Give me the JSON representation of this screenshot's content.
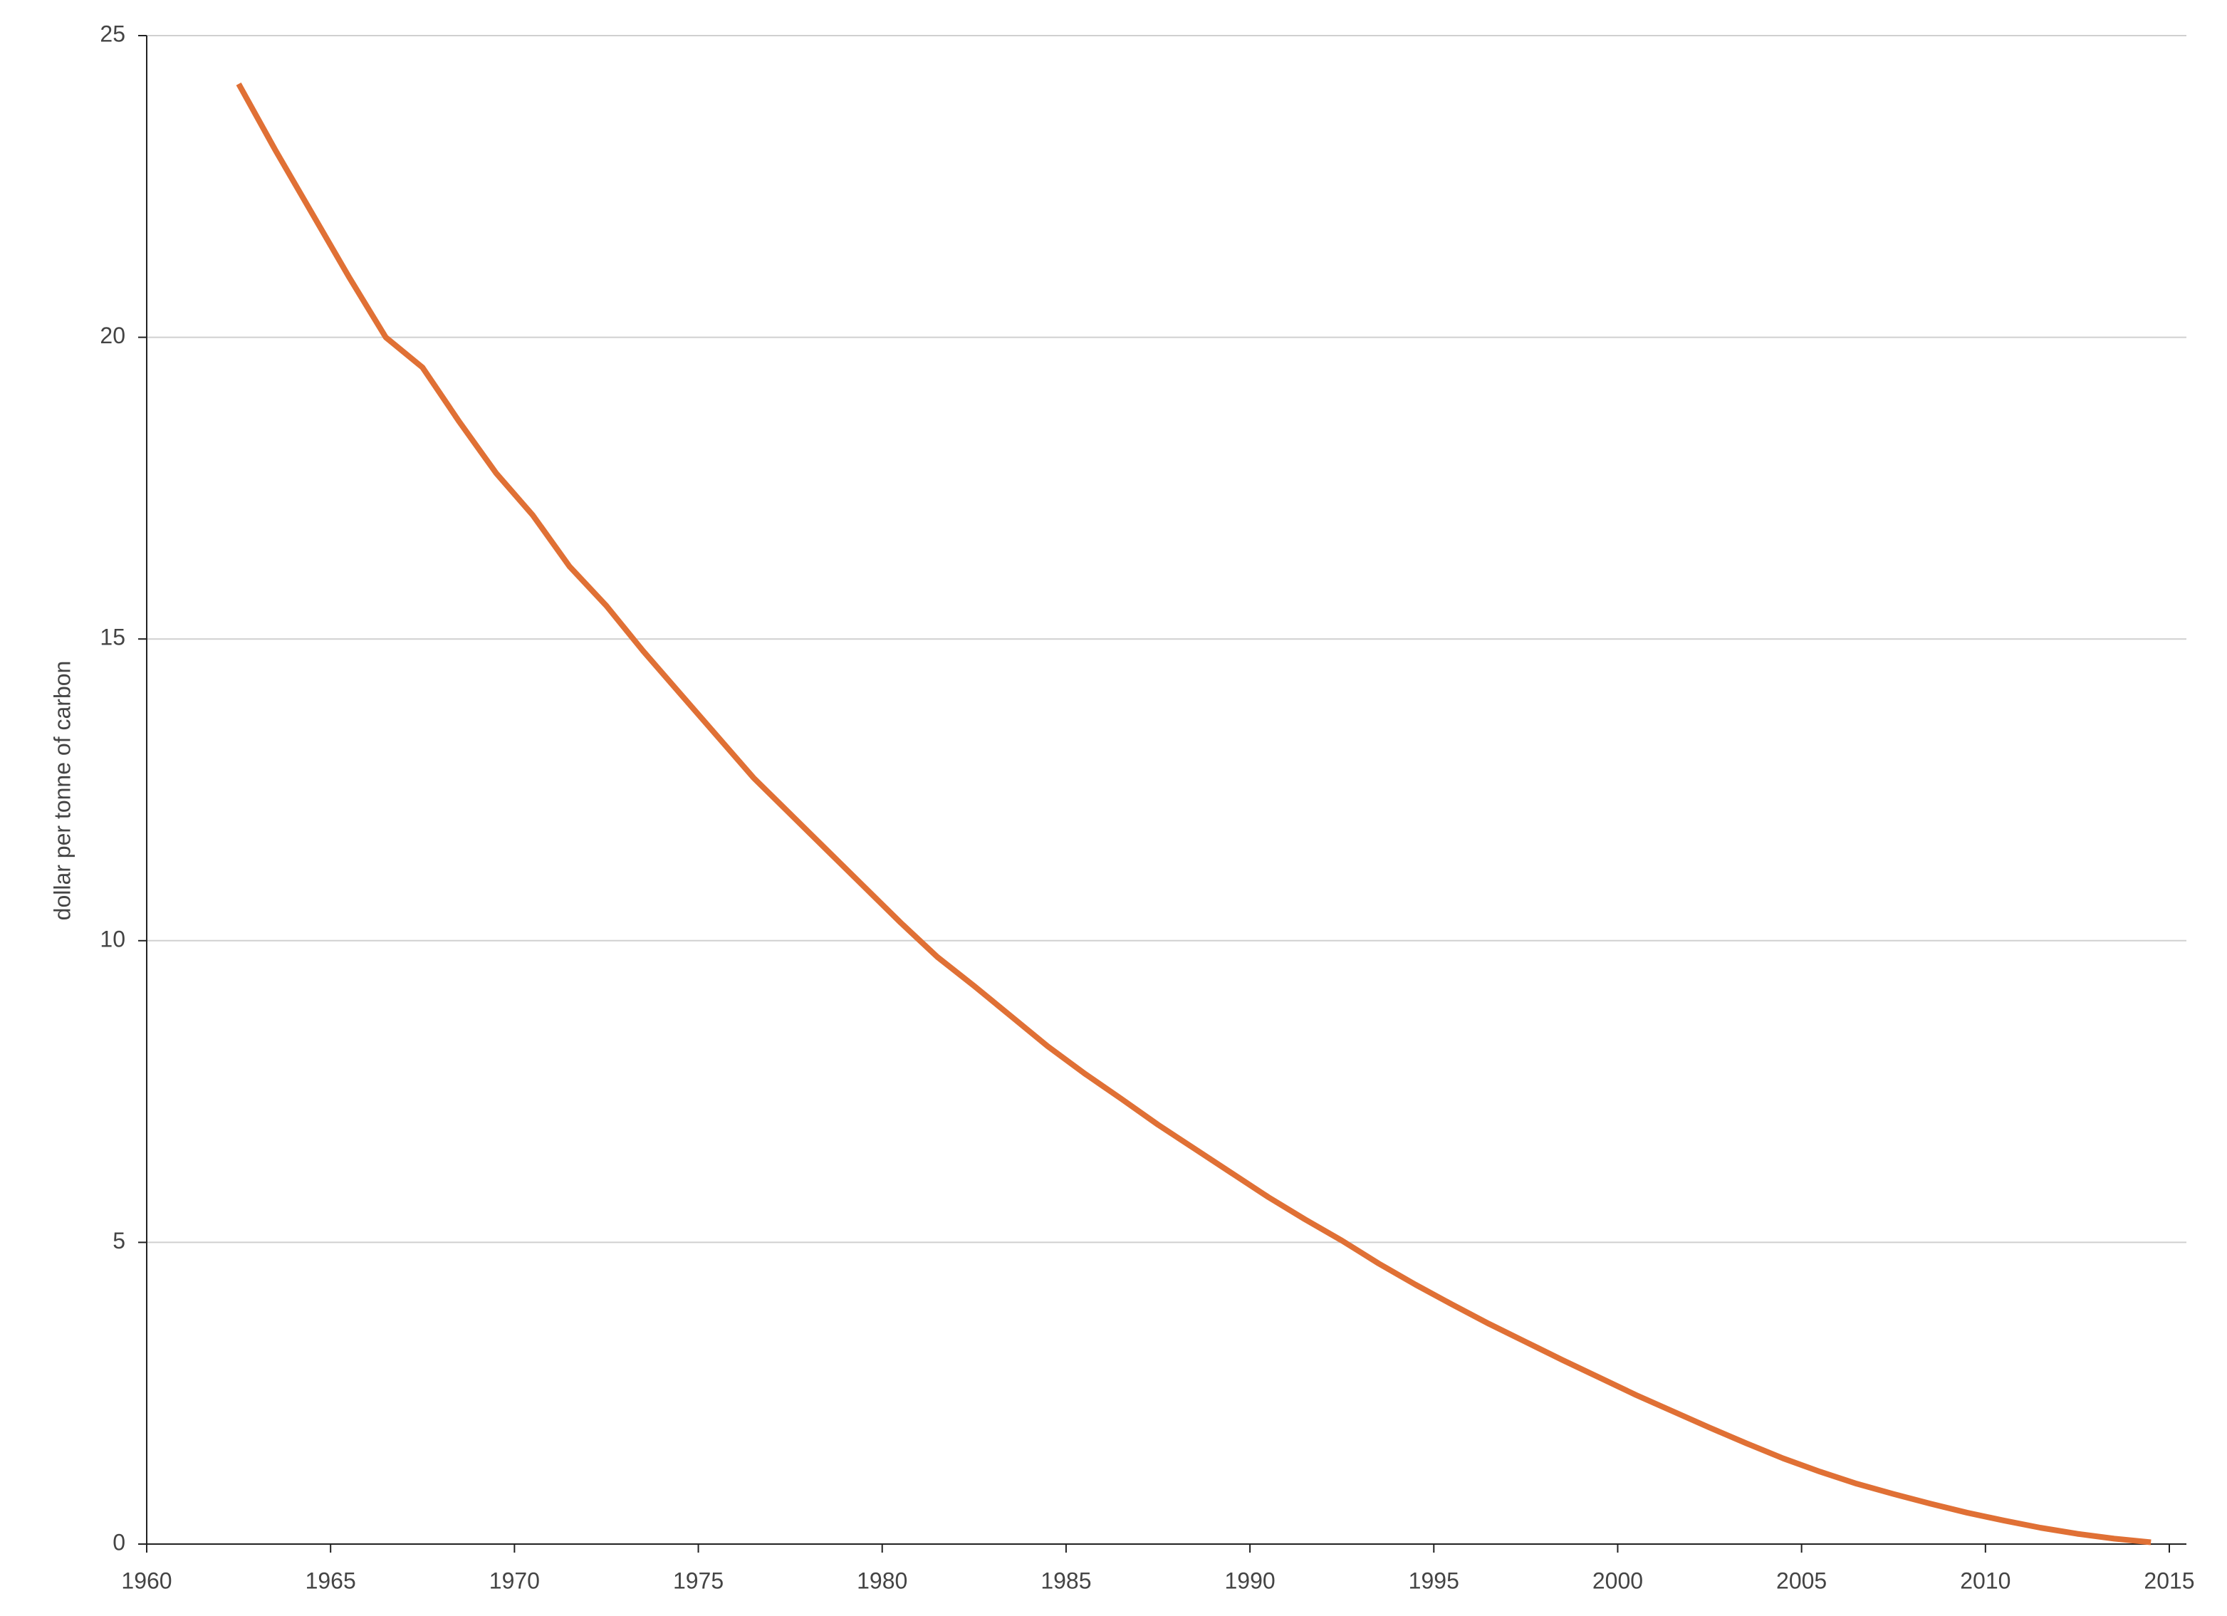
{
  "chart_data": {
    "type": "line",
    "y_label": "dollar per tonne of carbon",
    "x": [
      1962.5,
      1963.5,
      1964.5,
      1965.5,
      1966.5,
      1967.5,
      1968.5,
      1969.5,
      1970.5,
      1971.5,
      1972.5,
      1973.5,
      1974.5,
      1975.5,
      1976.5,
      1977.5,
      1978.5,
      1979.5,
      1980.5,
      1981.5,
      1982.5,
      1983.5,
      1984.5,
      1985.5,
      1986.5,
      1987.5,
      1988.5,
      1989.5,
      1990.5,
      1991.5,
      1992.5,
      1993.5,
      1994.5,
      1995.5,
      1996.5,
      1997.5,
      1998.5,
      1999.5,
      2000.5,
      2001.5,
      2002.5,
      2003.5,
      2004.5,
      2005.5,
      2006.5,
      2007.5,
      2008.5,
      2009.5,
      2010.5,
      2011.5,
      2012.5,
      2013.5,
      2014.5
    ],
    "series": [
      {
        "color": "#e07035",
        "values": [
          24.2,
          23.1,
          22.05,
          21.0,
          20.0,
          19.5,
          18.6,
          17.75,
          17.05,
          16.2,
          15.55,
          14.8,
          14.1,
          13.4,
          12.7,
          12.1,
          11.5,
          10.9,
          10.3,
          9.73,
          9.25,
          8.75,
          8.25,
          7.8,
          7.38,
          6.95,
          6.55,
          6.15,
          5.75,
          5.38,
          5.03,
          4.65,
          4.3,
          3.97,
          3.65,
          3.35,
          3.05,
          2.76,
          2.47,
          2.2,
          1.93,
          1.67,
          1.42,
          1.2,
          1.0,
          0.83,
          0.67,
          0.52,
          0.39,
          0.27,
          0.17,
          0.09,
          0.03
        ]
      }
    ],
    "xlim": [
      1960,
      2015
    ],
    "xticks": [
      1960,
      1965,
      1970,
      1975,
      1980,
      1985,
      1990,
      1995,
      2000,
      2005,
      2010,
      2015
    ],
    "ylim": [
      0,
      25
    ],
    "yticks": [
      0,
      5,
      10,
      15,
      20,
      25
    ],
    "grid": true
  }
}
